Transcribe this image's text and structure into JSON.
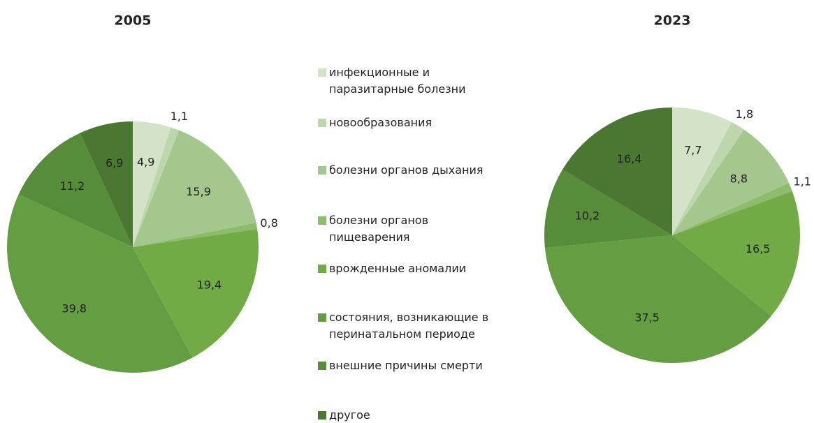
{
  "chart_data": [
    {
      "type": "pie",
      "title": "2005",
      "values": [
        4.9,
        1.1,
        15.9,
        0.8,
        19.4,
        39.8,
        11.2,
        6.9
      ],
      "value_labels": [
        "4,9",
        "1,1",
        "15,9",
        "0,8",
        "19,4",
        "39,8",
        "11,2",
        "6,9"
      ]
    },
    {
      "type": "pie",
      "title": "2023",
      "values": [
        7.7,
        1.8,
        8.8,
        1.1,
        16.5,
        37.5,
        10.2,
        16.4
      ],
      "value_labels": [
        "7,7",
        "1,8",
        "8,8",
        "1,1",
        "16,5",
        "37,5",
        "10,2",
        "16,4"
      ]
    }
  ],
  "legend": {
    "labels": [
      "инфекционные и\nпаразитарные болезни",
      "новообразования",
      "болезни органов дыхания",
      "болезни органов\nпищеварения",
      "врожденные аномалии",
      "состояния, возникающие в\nперинатальном периоде",
      "внешние причины смерти",
      "другое"
    ],
    "colors": [
      "#d3e3c8",
      "#bdd6ab",
      "#a4c78d",
      "#8dbd6c",
      "#72ab46",
      "#659e42",
      "#578c3a",
      "#4a7831"
    ]
  }
}
